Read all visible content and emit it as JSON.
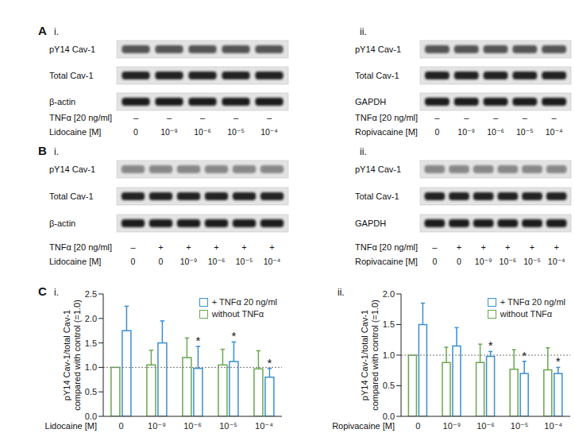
{
  "panels": [
    {
      "label": "A",
      "blots": [
        {
          "sub_label": "i.",
          "rows": [
            "pY14 Cav-1",
            "Total Cav-1",
            "β-actin"
          ],
          "treatment_label": "TNFα [20 ng/ml]",
          "treatment": [
            "–",
            "–",
            "–",
            "–",
            "–"
          ],
          "drug_label": "Lidocaine [M]",
          "doses": [
            "0",
            "10⁻⁹",
            "10⁻⁶",
            "10⁻⁵",
            "10⁻⁴"
          ]
        },
        {
          "sub_label": "ii.",
          "rows": [
            "pY14 Cav-1",
            "Total Cav-1",
            "GAPDH"
          ],
          "treatment_label": "TNFα [20 ng/ml]",
          "treatment": [
            "–",
            "–",
            "–",
            "–",
            "–"
          ],
          "drug_label": "Ropivacaine [M]",
          "doses": [
            "0",
            "10⁻⁹",
            "10⁻⁶",
            "10⁻⁵",
            "10⁻⁴"
          ]
        }
      ]
    },
    {
      "label": "B",
      "blots": [
        {
          "sub_label": "i.",
          "rows": [
            "pY14 Cav-1",
            "Total Cav-1",
            "β-actin"
          ],
          "treatment_label": "TNFα [20 ng/ml]",
          "treatment": [
            "–",
            "+",
            "+",
            "+",
            "+",
            "+"
          ],
          "drug_label": "Lidocaine [M]",
          "doses": [
            "0",
            "0",
            "10⁻⁹",
            "10⁻⁶",
            "10⁻⁵",
            "10⁻⁴"
          ]
        },
        {
          "sub_label": "ii.",
          "rows": [
            "pY14 Cav-1",
            "Total Cav-1",
            "GAPDH"
          ],
          "treatment_label": "TNFα [20 ng/ml]",
          "treatment": [
            "–",
            "+",
            "+",
            "+",
            "+",
            "+"
          ],
          "drug_label": "Ropivacaine [M]",
          "doses": [
            "0",
            "0",
            "10⁻⁹",
            "10⁻⁶",
            "10⁻⁵",
            "10⁻⁴"
          ]
        }
      ]
    }
  ],
  "chart_panel_label": "C",
  "chart_data": [
    {
      "type": "bar",
      "sub_label": "i.",
      "x_label": "Lidocaine [M]",
      "y_label": [
        "pY14 Cav-1/total Cav-1",
        "compared with control (=1.0)"
      ],
      "categories": [
        "0",
        "10⁻⁹",
        "10⁻⁶",
        "10⁻⁵",
        "10⁻⁴"
      ],
      "series": [
        {
          "name": "+ TNFα 20 ng/ml",
          "color": "#3b8fd0",
          "values": [
            1.75,
            1.5,
            0.98,
            1.12,
            0.8
          ],
          "errors": [
            0.5,
            0.45,
            0.45,
            0.4,
            0.18
          ]
        },
        {
          "name": "without TNFα",
          "color": "#6aa84f",
          "values": [
            1.0,
            1.05,
            1.2,
            1.05,
            0.97
          ],
          "errors": [
            null,
            0.3,
            0.4,
            0.32,
            0.37
          ]
        }
      ],
      "ylim": [
        0,
        2.5
      ],
      "yticks": [
        {
          "value": 0,
          "label": "0.0"
        },
        0.5,
        {
          "value": 1,
          "label": "1.0"
        },
        1.5,
        {
          "value": 2,
          "label": "2.0"
        },
        2.5
      ],
      "reference_line": 1.0,
      "annotations": [
        {
          "category": "10⁻⁶",
          "series": "+ TNFα 20 ng/ml",
          "text": "*"
        },
        {
          "category": "10⁻⁵",
          "series": "+ TNFα 20 ng/ml",
          "text": "*"
        },
        {
          "category": "10⁻⁴",
          "series": "+ TNFα 20 ng/ml",
          "text": "*"
        }
      ],
      "legend": "top right"
    },
    {
      "type": "bar",
      "sub_label": "ii.",
      "x_label": "Ropivacaine [M]",
      "y_label": [
        "pY14 Cav-1/total Cav-1",
        "compared with control (=1.0)"
      ],
      "categories": [
        "0",
        "10⁻⁹",
        "10⁻⁶",
        "10⁻⁵",
        "10⁻⁴"
      ],
      "series": [
        {
          "name": "+ TNFα 20 ng/ml",
          "color": "#3b8fd0",
          "values": [
            1.5,
            1.15,
            0.98,
            0.7,
            0.7
          ],
          "errors": [
            0.35,
            0.3,
            0.08,
            0.2,
            0.1
          ]
        },
        {
          "name": "without TNFα",
          "color": "#6aa84f",
          "values": [
            1.0,
            0.88,
            0.88,
            0.77,
            0.76
          ],
          "errors": [
            null,
            0.25,
            0.3,
            0.32,
            0.36
          ]
        }
      ],
      "ylim": [
        0,
        2.0
      ],
      "yticks": [
        {
          "value": 0,
          "label": "0.0"
        },
        0.5,
        {
          "value": 1,
          "label": "1.0"
        },
        1.5,
        {
          "value": 2,
          "label": "2.0"
        }
      ],
      "reference_line": 1.0,
      "annotations": [
        {
          "category": "10⁻⁶",
          "series": "+ TNFα 20 ng/ml",
          "text": "*"
        },
        {
          "category": "10⁻⁵",
          "series": "+ TNFα 20 ng/ml",
          "text": "*"
        },
        {
          "category": "10⁻⁴",
          "series": "+ TNFα 20 ng/ml",
          "text": "*"
        }
      ],
      "legend": "top right"
    }
  ]
}
